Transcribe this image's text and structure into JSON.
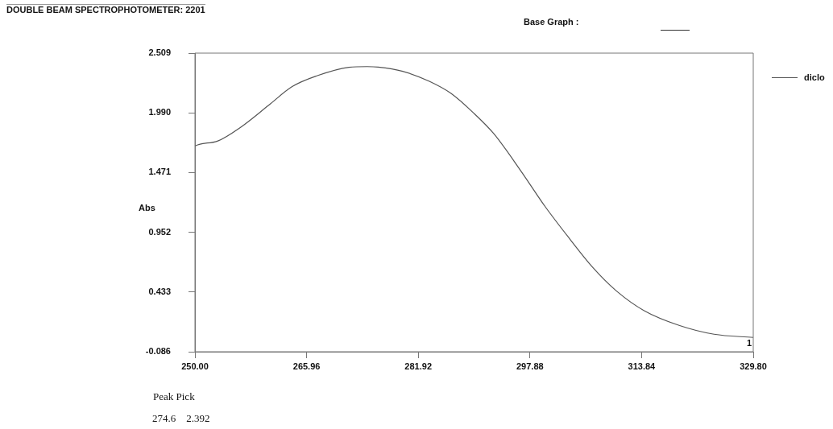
{
  "chart_data": {
    "type": "line",
    "title": "DOUBLE BEAM SPECTROPHOTOMETER: 2201",
    "ylabel": "Abs",
    "annotations": [
      "Base Graph :",
      "Peak Pick",
      "274.6    2.392",
      {
        "text": "1",
        "x": 329.8,
        "y": 0.038
      }
    ],
    "series": [
      {
        "name": "diclo",
        "color": "#555555",
        "x": [
          250.0,
          250.1,
          253.2,
          256.6,
          260.5,
          263.9,
          267.4,
          272.0,
          274.6,
          276.2,
          279.7,
          283.5,
          286.6,
          289.7,
          292.7,
          296.6,
          300.0,
          303.5,
          306.9,
          310.4,
          314.2,
          319.2,
          324.2,
          329.8
        ],
        "values": [
          1.7,
          1.705,
          1.744,
          1.868,
          2.054,
          2.218,
          2.311,
          2.386,
          2.392,
          2.388,
          2.351,
          2.264,
          2.159,
          1.996,
          1.81,
          1.484,
          1.18,
          0.9,
          0.644,
          0.434,
          0.271,
          0.143,
          0.066,
          0.038
        ]
      }
    ],
    "xlim": [
      250.0,
      329.8
    ],
    "xticks": [
      {
        "value": 250.0,
        "label": "250.00"
      },
      {
        "value": 265.96,
        "label": "265.96"
      },
      {
        "value": 281.92,
        "label": "281.92"
      },
      {
        "value": 297.88,
        "label": "297.88"
      },
      {
        "value": 313.84,
        "label": "313.84"
      },
      {
        "value": 329.8,
        "label": "329.80"
      }
    ],
    "ylim": [
      -0.086,
      2.509
    ],
    "yticks": [
      -0.086,
      0.433,
      0.952,
      1.471,
      {
        "value": 1.99,
        "label": "1.990"
      },
      2.509
    ],
    "grid": false,
    "legend": "top right",
    "marker": "none",
    "line_style": "solid"
  }
}
